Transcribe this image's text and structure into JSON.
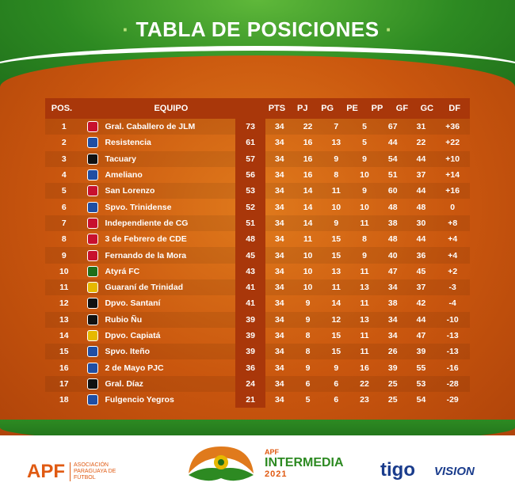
{
  "title": "TABLA DE POSICIONES",
  "title_dot": "·",
  "headers": {
    "pos": "POS.",
    "team": "EQUIPO",
    "pts": "PTS",
    "pj": "PJ",
    "pg": "PG",
    "pe": "PE",
    "pp": "PP",
    "gf": "GF",
    "gc": "GC",
    "df": "DF"
  },
  "rows": [
    {
      "pos": "1",
      "team": "Gral. Caballero de JLM",
      "pts": "73",
      "pj": "34",
      "pg": "22",
      "pe": "7",
      "pp": "5",
      "gf": "67",
      "gc": "31",
      "df": "+36",
      "crest": "#c8102e"
    },
    {
      "pos": "2",
      "team": "Resistencia",
      "pts": "61",
      "pj": "34",
      "pg": "16",
      "pe": "13",
      "pp": "5",
      "gf": "44",
      "gc": "22",
      "df": "+22",
      "crest": "#1f4ea3"
    },
    {
      "pos": "3",
      "team": "Tacuary",
      "pts": "57",
      "pj": "34",
      "pg": "16",
      "pe": "9",
      "pp": "9",
      "gf": "54",
      "gc": "44",
      "df": "+10",
      "crest": "#111111"
    },
    {
      "pos": "4",
      "team": "Ameliano",
      "pts": "56",
      "pj": "34",
      "pg": "16",
      "pe": "8",
      "pp": "10",
      "gf": "51",
      "gc": "37",
      "df": "+14",
      "crest": "#1f4ea3"
    },
    {
      "pos": "5",
      "team": "San Lorenzo",
      "pts": "53",
      "pj": "34",
      "pg": "14",
      "pe": "11",
      "pp": "9",
      "gf": "60",
      "gc": "44",
      "df": "+16",
      "crest": "#c8102e"
    },
    {
      "pos": "6",
      "team": "Spvo. Trinidense",
      "pts": "52",
      "pj": "34",
      "pg": "14",
      "pe": "10",
      "pp": "10",
      "gf": "48",
      "gc": "48",
      "df": "0",
      "crest": "#1f4ea3"
    },
    {
      "pos": "7",
      "team": "Independiente de CG",
      "pts": "51",
      "pj": "34",
      "pg": "14",
      "pe": "9",
      "pp": "11",
      "gf": "38",
      "gc": "30",
      "df": "+8",
      "crest": "#c8102e"
    },
    {
      "pos": "8",
      "team": "3 de Febrero de CDE",
      "pts": "48",
      "pj": "34",
      "pg": "11",
      "pe": "15",
      "pp": "8",
      "gf": "48",
      "gc": "44",
      "df": "+4",
      "crest": "#c8102e"
    },
    {
      "pos": "9",
      "team": "Fernando de la Mora",
      "pts": "45",
      "pj": "34",
      "pg": "10",
      "pe": "15",
      "pp": "9",
      "gf": "40",
      "gc": "36",
      "df": "+4",
      "crest": "#c8102e"
    },
    {
      "pos": "10",
      "team": "Atyrá FC",
      "pts": "43",
      "pj": "34",
      "pg": "10",
      "pe": "13",
      "pp": "11",
      "gf": "47",
      "gc": "45",
      "df": "+2",
      "crest": "#1f6e1a"
    },
    {
      "pos": "11",
      "team": "Guaraní de Trinidad",
      "pts": "41",
      "pj": "34",
      "pg": "10",
      "pe": "11",
      "pp": "13",
      "gf": "34",
      "gc": "37",
      "df": "-3",
      "crest": "#e6b800"
    },
    {
      "pos": "12",
      "team": "Dpvo. Santaní",
      "pts": "41",
      "pj": "34",
      "pg": "9",
      "pe": "14",
      "pp": "11",
      "gf": "38",
      "gc": "42",
      "df": "-4",
      "crest": "#111111"
    },
    {
      "pos": "13",
      "team": "Rubio Ñu",
      "pts": "39",
      "pj": "34",
      "pg": "9",
      "pe": "12",
      "pp": "13",
      "gf": "34",
      "gc": "44",
      "df": "-10",
      "crest": "#111111"
    },
    {
      "pos": "14",
      "team": "Dpvo. Capiatá",
      "pts": "39",
      "pj": "34",
      "pg": "8",
      "pe": "15",
      "pp": "11",
      "gf": "34",
      "gc": "47",
      "df": "-13",
      "crest": "#e6b800"
    },
    {
      "pos": "15",
      "team": "Spvo. Iteño",
      "pts": "39",
      "pj": "34",
      "pg": "8",
      "pe": "15",
      "pp": "11",
      "gf": "26",
      "gc": "39",
      "df": "-13",
      "crest": "#1f4ea3"
    },
    {
      "pos": "16",
      "team": "2 de Mayo PJC",
      "pts": "36",
      "pj": "34",
      "pg": "9",
      "pe": "9",
      "pp": "16",
      "gf": "39",
      "gc": "55",
      "df": "-16",
      "crest": "#1f4ea3"
    },
    {
      "pos": "17",
      "team": "Gral. Díaz",
      "pts": "24",
      "pj": "34",
      "pg": "6",
      "pe": "6",
      "pp": "22",
      "gf": "25",
      "gc": "53",
      "df": "-28",
      "crest": "#111111"
    },
    {
      "pos": "18",
      "team": "Fulgencio Yegros",
      "pts": "21",
      "pj": "34",
      "pg": "5",
      "pe": "6",
      "pp": "23",
      "gf": "25",
      "gc": "54",
      "df": "-29",
      "crest": "#1f4ea3"
    }
  ],
  "footer": {
    "apf_mark": "APF",
    "apf_text": "ASOCIACIÓN PARAGUAYA DE FÚTBOL",
    "inter_apf": "APF",
    "inter_main": "INTERMEDIA",
    "inter_year": "2021",
    "tigo": "tigo",
    "vision": "VISION"
  },
  "colors": {
    "green": "#2d8a22",
    "orange": "#c9560e",
    "header_row": "#a9370a",
    "white": "#ffffff"
  }
}
